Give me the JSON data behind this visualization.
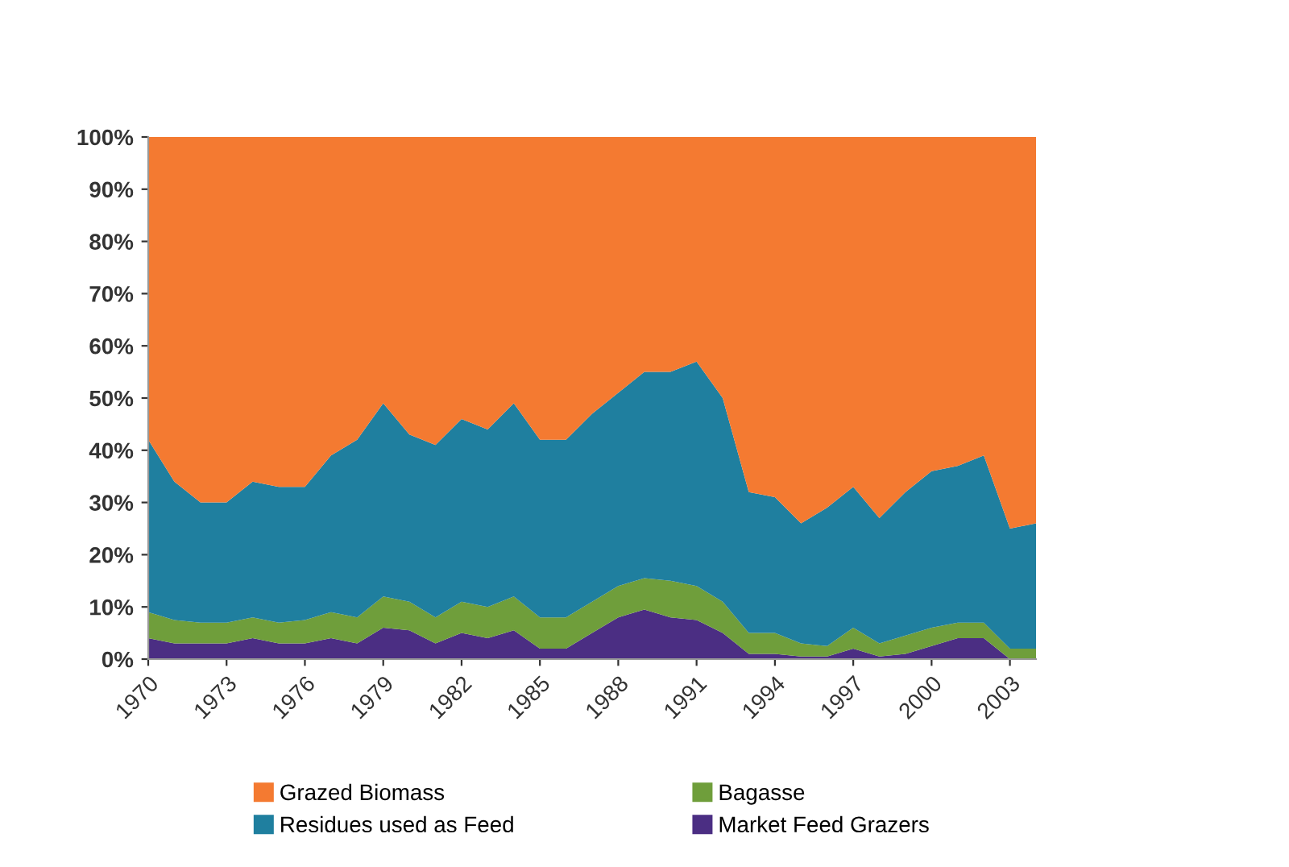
{
  "chart_data": {
    "type": "area",
    "stacked": true,
    "x": [
      1970,
      1971,
      1972,
      1973,
      1974,
      1975,
      1976,
      1977,
      1978,
      1979,
      1980,
      1981,
      1982,
      1983,
      1984,
      1985,
      1986,
      1987,
      1988,
      1989,
      1990,
      1991,
      1992,
      1993,
      1994,
      1995,
      1996,
      1997,
      1998,
      1999,
      2000,
      2001,
      2002,
      2003,
      2004
    ],
    "series": [
      {
        "name": "Market Feed Grazers",
        "color": "#4b2e83",
        "values": [
          4,
          3,
          3,
          3,
          4,
          3,
          3,
          4,
          3,
          6,
          5.5,
          3,
          5,
          4,
          5.5,
          2,
          2,
          5,
          8,
          9.5,
          8,
          7.5,
          5,
          1,
          1,
          0.5,
          0.5,
          2,
          0.5,
          1,
          2.5,
          4,
          4,
          0,
          0
        ]
      },
      {
        "name": "Bagasse",
        "color": "#6f9e3b",
        "values": [
          5,
          4.5,
          4,
          4,
          4,
          4,
          4.5,
          5,
          5,
          6,
          5.5,
          5,
          6,
          6,
          6.5,
          6,
          6,
          6,
          6,
          6,
          7,
          6.5,
          6,
          4,
          4,
          2.5,
          2,
          4,
          2.5,
          3.5,
          3.5,
          3,
          3,
          2,
          2
        ]
      },
      {
        "name": "Residues used as Feed",
        "color": "#1f7f9f",
        "values": [
          33,
          26.5,
          23,
          23,
          26,
          26,
          25.5,
          30,
          34,
          37,
          32,
          33,
          35,
          34,
          37,
          34,
          34,
          36,
          37,
          39.5,
          40,
          43,
          39,
          27,
          26,
          23,
          26.5,
          27,
          24,
          27.5,
          30,
          30,
          32,
          23,
          24
        ]
      },
      {
        "name": "Grazed Biomass",
        "color": "#f47a31",
        "values": [
          58,
          66,
          70,
          70,
          66,
          67,
          67,
          61,
          58,
          51,
          57,
          59,
          54,
          56,
          51,
          58,
          58,
          53,
          49,
          45,
          45,
          43,
          50,
          68,
          69,
          74,
          71,
          67,
          73,
          68,
          64,
          63,
          61,
          75,
          74
        ]
      }
    ],
    "xlim": [
      1970,
      2004
    ],
    "xticks": [
      1970,
      1973,
      1976,
      1979,
      1982,
      1985,
      1988,
      1991,
      1994,
      1997,
      2000,
      2003
    ],
    "ylim": [
      0,
      100
    ],
    "yticks": [
      {
        "value": 0,
        "label": "0%"
      },
      {
        "value": 10,
        "label": "10%"
      },
      {
        "value": 20,
        "label": "20%"
      },
      {
        "value": 30,
        "label": "30%"
      },
      {
        "value": 40,
        "label": "40%"
      },
      {
        "value": 50,
        "label": "50%"
      },
      {
        "value": 60,
        "label": "60%"
      },
      {
        "value": 70,
        "label": "70%"
      },
      {
        "value": 80,
        "label": "80%"
      },
      {
        "value": 90,
        "label": "90%"
      },
      {
        "value": 100,
        "label": "100%"
      }
    ],
    "legend": "bottom"
  }
}
